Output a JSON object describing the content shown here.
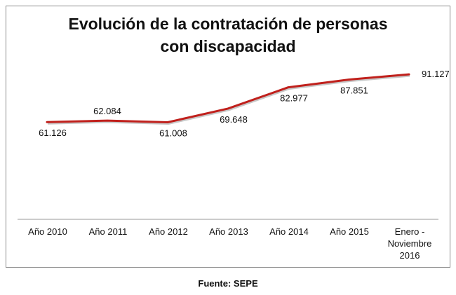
{
  "chart_data": {
    "type": "line",
    "title_lines": [
      "Evolución de la contratación de personas",
      "con discapacidad"
    ],
    "categories": [
      "Año 2010",
      "Año 2011",
      "Año 2012",
      "Año 2013",
      "Año 2014",
      "Año 2015",
      "Enero - Noviembre 2016"
    ],
    "category_label_lines": [
      [
        "Año 2010"
      ],
      [
        "Año 2011"
      ],
      [
        "Año 2012"
      ],
      [
        "Año 2013"
      ],
      [
        "Año 2014"
      ],
      [
        "Año 2015"
      ],
      [
        "Enero -",
        "Noviembre",
        "2016"
      ]
    ],
    "series": [
      {
        "values": [
          61126,
          62084,
          61008,
          69648,
          82977,
          87851,
          91127
        ],
        "data_labels": [
          "61.126",
          "62.084",
          "61.008",
          "69.648",
          "82.977",
          "87.851",
          "91.127"
        ],
        "color": "#c0201c"
      }
    ],
    "ylim": [
      0,
      100000
    ],
    "grid": false,
    "legend": "none",
    "xlabel": "",
    "ylabel": ""
  },
  "source": "Fuente: SEPE"
}
